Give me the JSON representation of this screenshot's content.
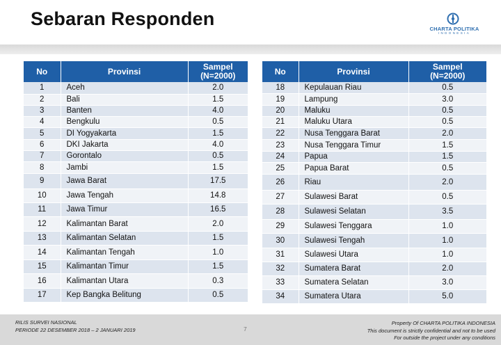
{
  "title": "Sebaran Responden",
  "logo": {
    "name": "CHARTA POLITIKA",
    "sub": "INDONESIA"
  },
  "colors": {
    "header_blue": "#1f5fa7",
    "row_odd": "#dde4ee",
    "row_even": "#f0f3f7",
    "logo_blue": "#2f6fb0"
  },
  "table": {
    "headers": {
      "no": "No",
      "provinsi": "Provinsi",
      "sampel_line1": "Sampel",
      "sampel_line2": "(N=2000)"
    },
    "left_rows": [
      {
        "no": "1",
        "prov": "Aceh",
        "val": "2.0"
      },
      {
        "no": "2",
        "prov": "Bali",
        "val": "1.5"
      },
      {
        "no": "3",
        "prov": "Banten",
        "val": "4.0"
      },
      {
        "no": "4",
        "prov": "Bengkulu",
        "val": "0.5"
      },
      {
        "no": "5",
        "prov": "DI Yogyakarta",
        "val": "1.5"
      },
      {
        "no": "6",
        "prov": "DKI Jakarta",
        "val": "4.0"
      },
      {
        "no": "7",
        "prov": "Gorontalo",
        "val": "0.5"
      },
      {
        "no": "8",
        "prov": "Jambi",
        "val": "1.5"
      },
      {
        "no": "9",
        "prov": "Jawa Barat",
        "val": "17.5"
      },
      {
        "no": "10",
        "prov": "Jawa Tengah",
        "val": "14.8"
      },
      {
        "no": "11",
        "prov": "Jawa Timur",
        "val": "16.5"
      },
      {
        "no": "12",
        "prov": "Kalimantan Barat",
        "val": "2.0"
      },
      {
        "no": "13",
        "prov": "Kalimantan Selatan",
        "val": "1.5"
      },
      {
        "no": "14",
        "prov": "Kalimantan Tengah",
        "val": "1.0"
      },
      {
        "no": "15",
        "prov": "Kalimantan Timur",
        "val": "1.5"
      },
      {
        "no": "16",
        "prov": "Kalimantan Utara",
        "val": "0.3"
      },
      {
        "no": "17",
        "prov": "Kep Bangka Belitung",
        "val": "0.5"
      }
    ],
    "right_rows": [
      {
        "no": "18",
        "prov": "Kepulauan Riau",
        "val": "0.5"
      },
      {
        "no": "19",
        "prov": "Lampung",
        "val": "3.0"
      },
      {
        "no": "20",
        "prov": "Maluku",
        "val": "0.5"
      },
      {
        "no": "21",
        "prov": "Maluku Utara",
        "val": "0.5"
      },
      {
        "no": "22",
        "prov": "Nusa Tenggara Barat",
        "val": "2.0"
      },
      {
        "no": "23",
        "prov": "Nusa Tenggara Timur",
        "val": "1.5"
      },
      {
        "no": "24",
        "prov": "Papua",
        "val": "1.5"
      },
      {
        "no": "25",
        "prov": "Papua Barat",
        "val": "0.5"
      },
      {
        "no": "26",
        "prov": "Riau",
        "val": "2.0"
      },
      {
        "no": "27",
        "prov": "Sulawesi Barat",
        "val": "0.5"
      },
      {
        "no": "28",
        "prov": "Sulawesi Selatan",
        "val": "3.5"
      },
      {
        "no": "29",
        "prov": "Sulawesi Tenggara",
        "val": "1.0"
      },
      {
        "no": "30",
        "prov": "Sulawesi Tengah",
        "val": "1.0"
      },
      {
        "no": "31",
        "prov": "Sulawesi Utara",
        "val": "1.0"
      },
      {
        "no": "32",
        "prov": "Sumatera Barat",
        "val": "2.0"
      },
      {
        "no": "33",
        "prov": "Sumatera Selatan",
        "val": "3.0"
      },
      {
        "no": "34",
        "prov": "Sumatera Utara",
        "val": "5.0"
      }
    ]
  },
  "footer": {
    "left_line1": "RILIS SURVEI NASIONAL",
    "left_line2": "PERIODE  22 DESEMBER 2018 – 2 JANUARI 2019",
    "page": "7",
    "right_line1": "Property Of CHARTA POLITIKA INDONESIA",
    "right_line2": "This document is strictly confidential and not to be used",
    "right_line3": "For  outside the project under any conditions"
  }
}
